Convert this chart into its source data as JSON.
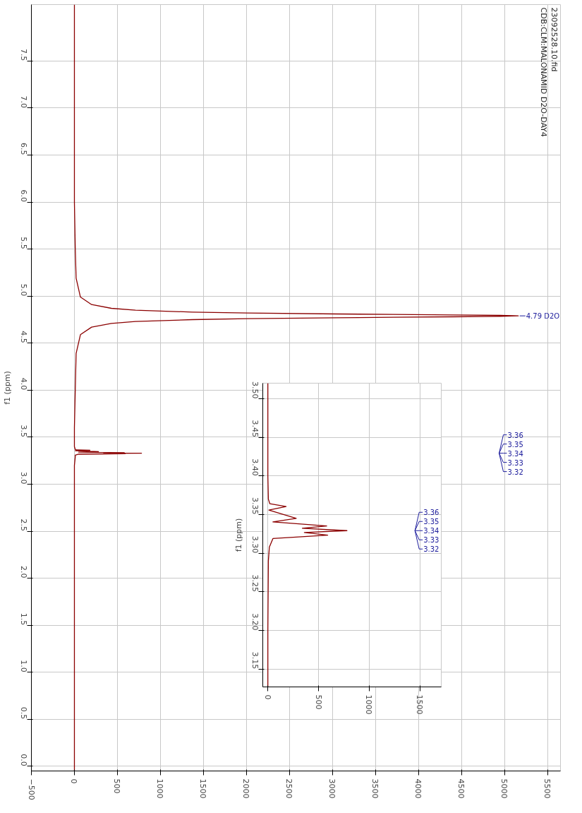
{
  "chart_data": [
    {
      "type": "line",
      "orientation": "horizontal",
      "title": "23092528.10.fid",
      "subtitle": "CDB:CLM:MALONAMID D2O-DAY4",
      "ylabel": "f1 (ppm)",
      "x": [
        8.1,
        7.0,
        6.0,
        5.5,
        5.19,
        4.99,
        4.91,
        4.87,
        4.85,
        4.83,
        4.82,
        4.81,
        4.805,
        4.8,
        4.795,
        4.79,
        4.785,
        4.78,
        4.775,
        4.77,
        4.76,
        4.75,
        4.73,
        4.71,
        4.67,
        4.59,
        4.39,
        4.0,
        3.6,
        3.4,
        3.37,
        3.364,
        3.3604,
        3.3558,
        3.3451,
        3.3405,
        3.3353,
        3.3323,
        3.3292,
        3.3268,
        3.3234,
        3.319,
        3.308,
        3.29,
        3.2,
        2.5,
        1.0,
        -0.05
      ],
      "series": [
        {
          "color": "#8b0000",
          "values": [
            0,
            0,
            0,
            10,
            20,
            70,
            200,
            430,
            710,
            1370,
            2010,
            3050,
            3710,
            4400,
            4950,
            5160,
            4950,
            4400,
            3710,
            3050,
            2010,
            1370,
            710,
            430,
            200,
            70,
            20,
            10,
            0,
            0,
            10,
            20,
            180,
            10,
            280,
            50,
            580,
            340,
            780,
            360,
            590,
            50,
            10,
            10,
            0,
            0,
            0,
            0
          ]
        }
      ],
      "xlim": [
        -500,
        5650
      ],
      "xticks": [
        -500,
        0,
        500,
        1000,
        1500,
        2000,
        2500,
        3000,
        3500,
        4000,
        4500,
        5000,
        5500
      ],
      "ylim": [
        -0.05,
        8.1
      ],
      "yticks": [
        {
          "value": 0,
          "label": "0.0"
        },
        {
          "value": 0.5,
          "label": "0.5"
        },
        {
          "value": 1,
          "label": "1.0"
        },
        {
          "value": 1.5,
          "label": "1.5"
        },
        {
          "value": 2,
          "label": "2.0"
        },
        {
          "value": 2.5,
          "label": "2.5"
        },
        {
          "value": 3,
          "label": "3.0"
        },
        {
          "value": 3.5,
          "label": "3.5"
        },
        {
          "value": 4,
          "label": "4.0"
        },
        {
          "value": 4.5,
          "label": "4.5"
        },
        {
          "value": 5,
          "label": "5.0"
        },
        {
          "value": 5.5,
          "label": "5.5"
        },
        {
          "value": 6,
          "label": "6.0"
        },
        {
          "value": 6.5,
          "label": "6.5"
        },
        {
          "value": 7,
          "label": "7.0"
        },
        {
          "value": 7.5,
          "label": "7.5"
        }
      ],
      "grid": true,
      "marker": "none",
      "line_style": "solid",
      "annotations": [
        {
          "text": "4.79 D2O",
          "x": 5160,
          "y": 4.79
        },
        "3.36",
        "3.35",
        "3.34",
        "3.33",
        "3.32"
      ]
    },
    {
      "type": "line",
      "orientation": "horizontal",
      "ylabel": "f1 (ppm)",
      "x": [
        3.52,
        3.4,
        3.37,
        3.364,
        3.3604,
        3.3558,
        3.3451,
        3.3405,
        3.3353,
        3.3323,
        3.3292,
        3.3268,
        3.3234,
        3.319,
        3.308,
        3.29,
        3.2,
        3.127
      ],
      "series": [
        {
          "color": "#8b0000",
          "values": [
            0,
            0,
            5,
            20,
            180,
            10,
            280,
            50,
            580,
            340,
            780,
            360,
            590,
            50,
            15,
            5,
            0,
            0
          ]
        }
      ],
      "xlim": [
        -50,
        1710
      ],
      "xticks": [
        0,
        500,
        1000,
        1500
      ],
      "ylim": [
        3.127,
        3.52
      ],
      "yticks": [
        {
          "value": 3.15,
          "label": "3.15"
        },
        {
          "value": 3.2,
          "label": "3.20"
        },
        {
          "value": 3.25,
          "label": "3.25"
        },
        {
          "value": 3.3,
          "label": "3.30"
        },
        {
          "value": 3.35,
          "label": "3.35"
        },
        {
          "value": 3.4,
          "label": "3.40"
        },
        {
          "value": 3.45,
          "label": "3.45"
        },
        {
          "value": 3.5,
          "label": "3.50"
        }
      ],
      "grid": true,
      "marker": "none",
      "line_style": "solid",
      "annotations": [
        "3.36",
        "3.35",
        "3.34",
        "3.33",
        "3.32"
      ]
    }
  ]
}
